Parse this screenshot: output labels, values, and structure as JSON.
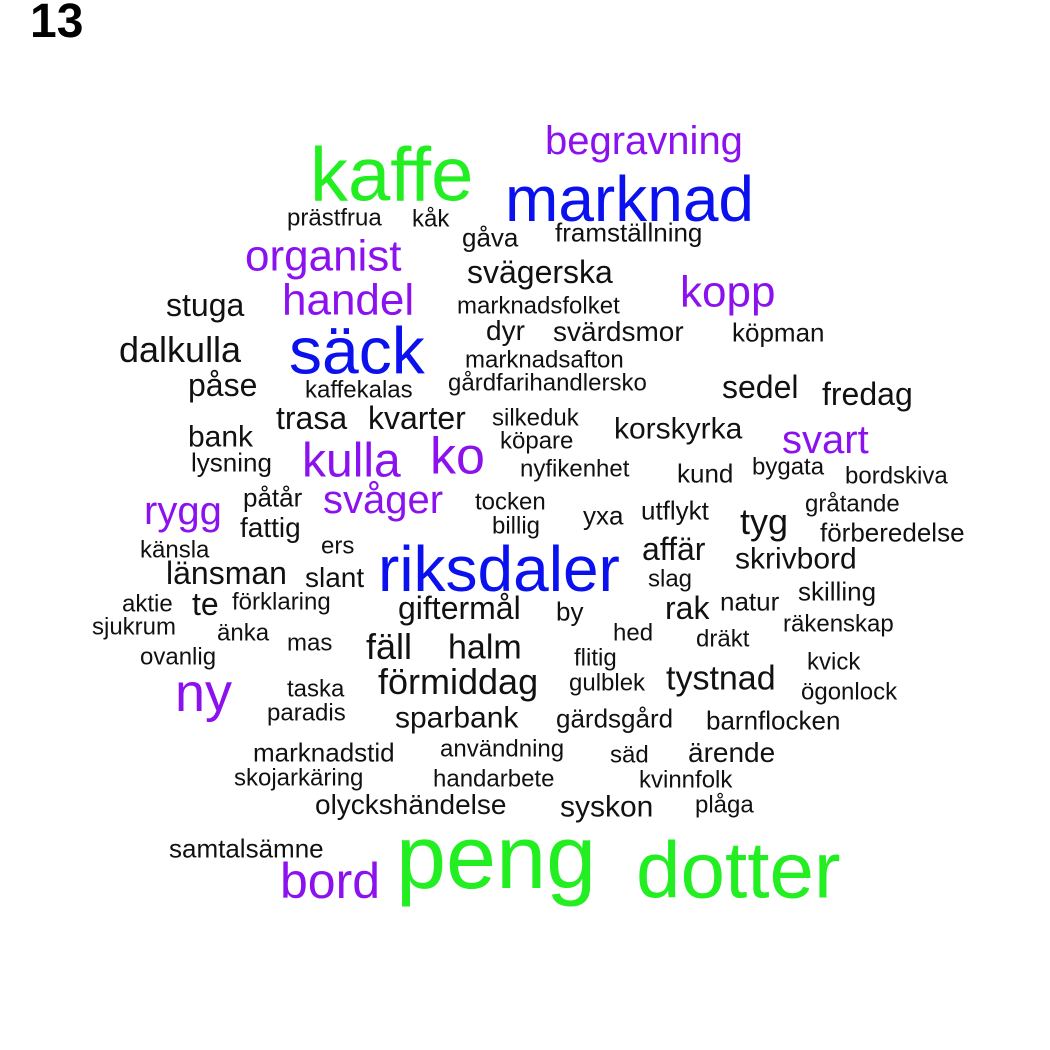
{
  "page_number": "13",
  "colors": {
    "green": "#22ee22",
    "blue": "#0a10ee",
    "purple": "#8b12ee",
    "black": "#111111"
  },
  "words": [
    {
      "text": "kaffe",
      "color": "green"
    },
    {
      "text": "marknad",
      "color": "blue"
    },
    {
      "text": "begravning",
      "color": "purple"
    },
    {
      "text": "prästfrua",
      "color": "black"
    },
    {
      "text": "kåk",
      "color": "black"
    },
    {
      "text": "gåva",
      "color": "black"
    },
    {
      "text": "framställning",
      "color": "black"
    },
    {
      "text": "organist",
      "color": "purple"
    },
    {
      "text": "svägerska",
      "color": "black"
    },
    {
      "text": "stuga",
      "color": "black"
    },
    {
      "text": "handel",
      "color": "purple"
    },
    {
      "text": "marknadsfolket",
      "color": "black"
    },
    {
      "text": "kopp",
      "color": "purple"
    },
    {
      "text": "säck",
      "color": "blue"
    },
    {
      "text": "dyr",
      "color": "black"
    },
    {
      "text": "svärdsmor",
      "color": "black"
    },
    {
      "text": "köpman",
      "color": "black"
    },
    {
      "text": "dalkulla",
      "color": "black"
    },
    {
      "text": "marknadsafton",
      "color": "black"
    },
    {
      "text": "påse",
      "color": "black"
    },
    {
      "text": "kaffekalas",
      "color": "black"
    },
    {
      "text": "gårdfarihandlersko",
      "color": "black"
    },
    {
      "text": "sedel",
      "color": "black"
    },
    {
      "text": "fredag",
      "color": "black"
    },
    {
      "text": "trasa",
      "color": "black"
    },
    {
      "text": "kvarter",
      "color": "black"
    },
    {
      "text": "silkeduk",
      "color": "black"
    },
    {
      "text": "bank",
      "color": "black"
    },
    {
      "text": "köpare",
      "color": "black"
    },
    {
      "text": "korskyrka",
      "color": "black"
    },
    {
      "text": "svart",
      "color": "purple"
    },
    {
      "text": "kulla",
      "color": "purple"
    },
    {
      "text": "ko",
      "color": "purple"
    },
    {
      "text": "lysning",
      "color": "black"
    },
    {
      "text": "nyfikenhet",
      "color": "black"
    },
    {
      "text": "kund",
      "color": "black"
    },
    {
      "text": "bygata",
      "color": "black"
    },
    {
      "text": "bordskiva",
      "color": "black"
    },
    {
      "text": "rygg",
      "color": "purple"
    },
    {
      "text": "påtår",
      "color": "black"
    },
    {
      "text": "svåger",
      "color": "purple"
    },
    {
      "text": "tocken",
      "color": "black"
    },
    {
      "text": "gråtande",
      "color": "black"
    },
    {
      "text": "fattig",
      "color": "black"
    },
    {
      "text": "billig",
      "color": "black"
    },
    {
      "text": "yxa",
      "color": "black"
    },
    {
      "text": "utflykt",
      "color": "black"
    },
    {
      "text": "tyg",
      "color": "black"
    },
    {
      "text": "förberedelse",
      "color": "black"
    },
    {
      "text": "känsla",
      "color": "black"
    },
    {
      "text": "ers",
      "color": "black"
    },
    {
      "text": "riksdaler",
      "color": "blue"
    },
    {
      "text": "affär",
      "color": "black"
    },
    {
      "text": "skrivbord",
      "color": "black"
    },
    {
      "text": "länsman",
      "color": "black"
    },
    {
      "text": "slant",
      "color": "black"
    },
    {
      "text": "slag",
      "color": "black"
    },
    {
      "text": "skilling",
      "color": "black"
    },
    {
      "text": "aktie",
      "color": "black"
    },
    {
      "text": "te",
      "color": "black"
    },
    {
      "text": "förklaring",
      "color": "black"
    },
    {
      "text": "giftermål",
      "color": "black"
    },
    {
      "text": "by",
      "color": "black"
    },
    {
      "text": "rak",
      "color": "black"
    },
    {
      "text": "natur",
      "color": "black"
    },
    {
      "text": "sjukrum",
      "color": "black"
    },
    {
      "text": "änka",
      "color": "black"
    },
    {
      "text": "hed",
      "color": "black"
    },
    {
      "text": "räkenskap",
      "color": "black"
    },
    {
      "text": "mas",
      "color": "black"
    },
    {
      "text": "fäll",
      "color": "black"
    },
    {
      "text": "halm",
      "color": "black"
    },
    {
      "text": "dräkt",
      "color": "black"
    },
    {
      "text": "ovanlig",
      "color": "black"
    },
    {
      "text": "flitig",
      "color": "black"
    },
    {
      "text": "kvick",
      "color": "black"
    },
    {
      "text": "ny",
      "color": "purple"
    },
    {
      "text": "förmiddag",
      "color": "black"
    },
    {
      "text": "tystnad",
      "color": "black"
    },
    {
      "text": "taska",
      "color": "black"
    },
    {
      "text": "gulblek",
      "color": "black"
    },
    {
      "text": "ögonlock",
      "color": "black"
    },
    {
      "text": "paradis",
      "color": "black"
    },
    {
      "text": "sparbank",
      "color": "black"
    },
    {
      "text": "gärdsgård",
      "color": "black"
    },
    {
      "text": "barnflocken",
      "color": "black"
    },
    {
      "text": "marknadstid",
      "color": "black"
    },
    {
      "text": "användning",
      "color": "black"
    },
    {
      "text": "säd",
      "color": "black"
    },
    {
      "text": "ärende",
      "color": "black"
    },
    {
      "text": "skojarkäring",
      "color": "black"
    },
    {
      "text": "handarbete",
      "color": "black"
    },
    {
      "text": "kvinnfolk",
      "color": "black"
    },
    {
      "text": "olyckshändelse",
      "color": "black"
    },
    {
      "text": "syskon",
      "color": "black"
    },
    {
      "text": "plåga",
      "color": "black"
    },
    {
      "text": "samtalsämne",
      "color": "black"
    },
    {
      "text": "peng",
      "color": "green"
    },
    {
      "text": "dotter",
      "color": "green"
    },
    {
      "text": "bord",
      "color": "purple"
    }
  ]
}
